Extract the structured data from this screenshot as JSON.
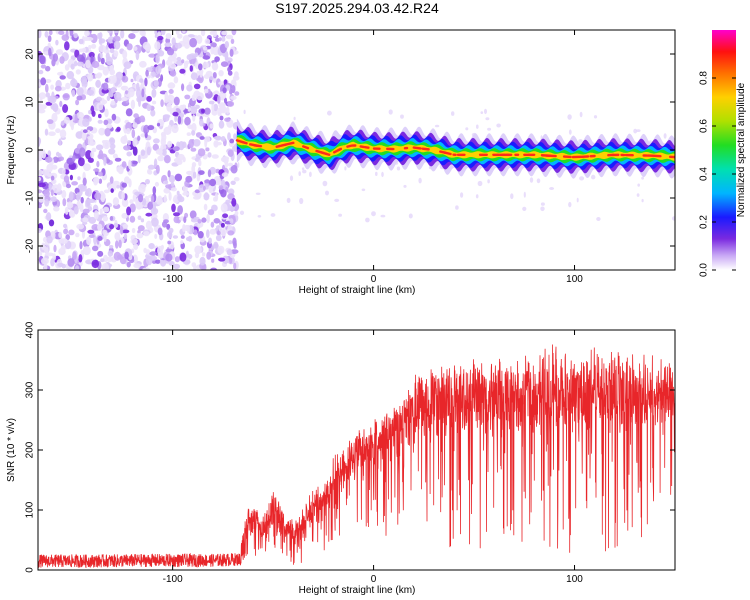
{
  "figure_title": "S197.2025.294.03.42.R24",
  "colors": {
    "snr_line": "#e8262a",
    "ridge_core": "#ff2a1a",
    "noise": "#7a2ae0",
    "axis": "#000000"
  },
  "chart_data": [
    {
      "type": "heatmap",
      "title": "S197.2025.294.03.42.R24",
      "xlabel": "Height of straight line (km)",
      "ylabel": "Frequency (Hz)",
      "xlim": [
        -167,
        150
      ],
      "ylim": [
        -25,
        25
      ],
      "x_ticks": [
        -100,
        0,
        100
      ],
      "x_tick_labels": [
        "-100",
        "0",
        "100"
      ],
      "y_ticks": [
        -20,
        -10,
        0,
        10,
        20
      ],
      "y_tick_labels": [
        "-20",
        "-10",
        "0",
        "10",
        "20"
      ],
      "noise_region_x": [
        -167,
        -68
      ],
      "ridge_frequency": {
        "x": [
          -68,
          -60,
          -50,
          -40,
          -30,
          -22,
          -15,
          -10,
          0,
          10,
          20,
          30,
          40,
          60,
          80,
          100,
          120,
          140,
          150
        ],
        "freq": [
          2,
          1,
          0.5,
          1.5,
          0,
          -1,
          0.5,
          1,
          0.3,
          0.2,
          0.5,
          0,
          -1,
          -1,
          -1,
          -1.5,
          -1,
          -1.2,
          -1.5
        ]
      },
      "colorbar": {
        "label": "Normalized spectral amplitude",
        "range": [
          0,
          1
        ],
        "ticks": [
          0.0,
          0.2,
          0.4,
          0.6,
          0.8
        ],
        "tick_labels": [
          "0.0",
          "0.2",
          "0.4",
          "0.6",
          "0.8"
        ]
      }
    },
    {
      "type": "line",
      "xlabel": "Height of straight line (km)",
      "ylabel": "SNR (10 * v/v)",
      "xlim": [
        -167,
        150
      ],
      "ylim": [
        0,
        400
      ],
      "x_ticks": [
        -100,
        0,
        100
      ],
      "x_tick_labels": [
        "-100",
        "0",
        "100"
      ],
      "y_ticks": [
        0,
        100,
        200,
        300,
        400
      ],
      "y_tick_labels": [
        "0",
        "100",
        "200",
        "300",
        "400"
      ],
      "series": [
        {
          "name": "SNR",
          "x": [
            -167,
            -140,
            -110,
            -80,
            -66,
            -62,
            -55,
            -50,
            -45,
            -40,
            -35,
            -30,
            -25,
            -20,
            -10,
            0,
            10,
            20,
            30,
            40,
            50,
            60,
            70,
            80,
            90,
            100,
            110,
            120,
            130,
            140,
            150
          ],
          "mean": [
            15,
            15,
            16,
            16,
            18,
            90,
            70,
            110,
            80,
            60,
            80,
            110,
            130,
            170,
            200,
            230,
            260,
            300,
            320,
            320,
            330,
            330,
            335,
            345,
            350,
            340,
            350,
            345,
            345,
            330,
            340
          ],
          "low": [
            5,
            5,
            5,
            5,
            5,
            20,
            10,
            30,
            10,
            5,
            10,
            20,
            30,
            40,
            50,
            60,
            50,
            60,
            40,
            30,
            30,
            40,
            30,
            30,
            20,
            30,
            30,
            30,
            40,
            80,
            120
          ]
        }
      ]
    }
  ]
}
